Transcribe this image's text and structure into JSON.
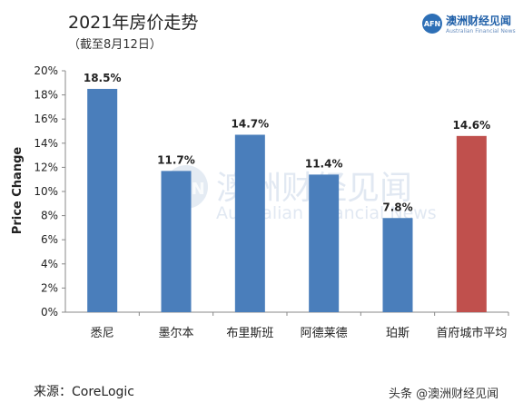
{
  "header": {
    "title": "2021年房价走势",
    "subtitle": "（截至8月12日）"
  },
  "logo": {
    "badge": "AFN",
    "name_cn": "澳洲财经见闻",
    "name_en": "Australian Financial News"
  },
  "watermark": {
    "badge": "AFN",
    "text_cn": "澳洲财经见闻",
    "text_en": "Australian Financial News"
  },
  "footer": {
    "source": "来源：CoreLogic",
    "credit": "头条 @澳洲财经见闻"
  },
  "colors": {
    "bar_default": "#4a7ebb",
    "bar_highlight": "#c0504d",
    "axis": "#888888"
  },
  "chart_data": {
    "type": "bar",
    "title": "2021年房价走势",
    "subtitle": "（截至8月12日）",
    "xlabel": "",
    "ylabel": "Price Change",
    "ylim": [
      0,
      20
    ],
    "yticks": [
      "0%",
      "2%",
      "4%",
      "6%",
      "8%",
      "10%",
      "12%",
      "14%",
      "16%",
      "18%",
      "20%"
    ],
    "grid": false,
    "categories": [
      "悉尼",
      "墨尔本",
      "布里斯班",
      "阿德莱德",
      "珀斯",
      "首府城市平均"
    ],
    "values": [
      18.5,
      11.7,
      14.7,
      11.4,
      7.8,
      14.6
    ],
    "data_labels": [
      "18.5%",
      "11.7%",
      "14.7%",
      "11.4%",
      "7.8%",
      "14.6%"
    ],
    "highlight_index": 5
  }
}
